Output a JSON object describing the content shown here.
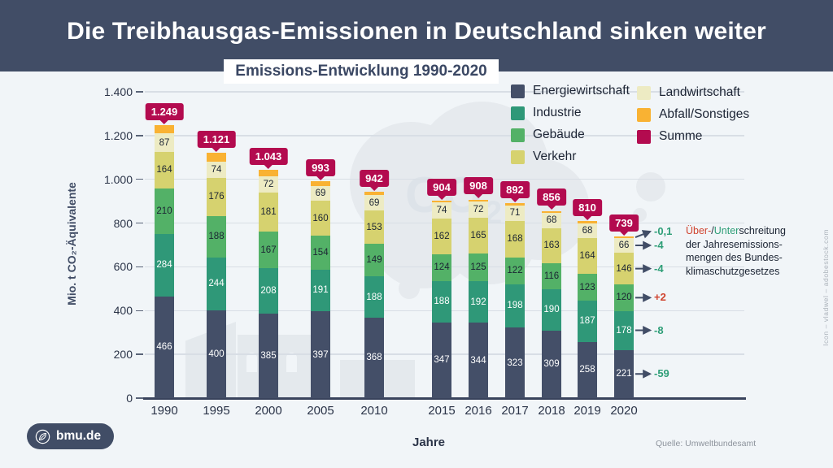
{
  "header": {
    "title": "Die Treibhausgas-Emissionen in Deutschland sinken weiter",
    "subtitle": "Emissions-Entwicklung 1990-2020"
  },
  "chart_data": {
    "type": "bar",
    "stacked": true,
    "title": "Emissions-Entwicklung 1990-2020",
    "xlabel": "Jahre",
    "ylabel": "Mio. t CO₂-Äquivalente",
    "ylim": [
      0,
      1400
    ],
    "grid": true,
    "legend_position": "top-right",
    "ytick_values": [
      0,
      200,
      400,
      600,
      800,
      1000,
      1200,
      1400
    ],
    "ytick_labels": [
      "0",
      "200",
      "400",
      "600",
      "800",
      "1.000",
      "1.200",
      "1.400"
    ],
    "categories": [
      "1990",
      "1995",
      "2000",
      "2005",
      "2010",
      "2015",
      "2016",
      "2017",
      "2018",
      "2019",
      "2020"
    ],
    "series": [
      {
        "name": "Energiewirtschaft",
        "color_key": "energiewirtschaft",
        "label_light": true,
        "values": [
          466,
          400,
          385,
          397,
          368,
          347,
          344,
          323,
          309,
          258,
          221
        ]
      },
      {
        "name": "Industrie",
        "color_key": "industrie",
        "label_light": true,
        "values": [
          284,
          244,
          208,
          191,
          188,
          188,
          192,
          198,
          190,
          187,
          178
        ]
      },
      {
        "name": "Gebäude",
        "color_key": "gebaeude",
        "label_light": false,
        "values": [
          210,
          188,
          167,
          154,
          149,
          124,
          125,
          122,
          116,
          123,
          120
        ]
      },
      {
        "name": "Verkehr",
        "color_key": "verkehr",
        "label_light": false,
        "values": [
          164,
          176,
          181,
          160,
          153,
          162,
          165,
          168,
          163,
          164,
          146
        ]
      },
      {
        "name": "Landwirtschaft",
        "color_key": "landwirtschaft",
        "label_light": false,
        "values": [
          87,
          74,
          72,
          69,
          69,
          74,
          72,
          71,
          68,
          68,
          66
        ]
      },
      {
        "name": "Abfall/Sonstiges",
        "color_key": "abfall",
        "label_light": false,
        "values": null
      }
    ],
    "totals_name": "Summe",
    "totals_values": [
      1249,
      1121,
      1043,
      993,
      942,
      904,
      908,
      892,
      856,
      810,
      739
    ],
    "totals_labels": [
      "1.249",
      "1.121",
      "1.043",
      "993",
      "942",
      "904",
      "908",
      "892",
      "856",
      "810",
      "739"
    ],
    "legend": {
      "columns": [
        [
          {
            "label": "Energiewirtschaft",
            "color_key": "energiewirtschaft"
          },
          {
            "label": "Industrie",
            "color_key": "industrie"
          },
          {
            "label": "Gebäude",
            "color_key": "gebaeude"
          },
          {
            "label": "Verkehr",
            "color_key": "verkehr"
          }
        ],
        [
          {
            "label": "Landwirtschaft",
            "color_key": "landwirtschaft"
          },
          {
            "label": "Abfall/Sonstiges",
            "color_key": "abfall"
          },
          {
            "label": "Summe",
            "color_key": "summe"
          }
        ]
      ]
    },
    "deltas": [
      {
        "value": "-0,1",
        "tone": "green"
      },
      {
        "value": "-4",
        "tone": "green"
      },
      {
        "value": "-4",
        "tone": "green"
      },
      {
        "value": "+2",
        "tone": "red"
      },
      {
        "value": "-8",
        "tone": "green"
      },
      {
        "value": "-59",
        "tone": "green"
      }
    ]
  },
  "annotation_note": {
    "seg_red": "Über-",
    "seg_slash": "/",
    "seg_green": "Unter",
    "seg_rest": "schreitung",
    "line2": "der Jahresemissions-",
    "line3": "mengen des Bundes-",
    "line4": "klimaschutzgesetzes"
  },
  "colors": {
    "header_bg": "#414D66",
    "page_bg": "#F1F5F8",
    "energiewirtschaft": "#444F68",
    "industrie": "#2F9878",
    "gebaeude": "#53B167",
    "verkehr": "#D6D26F",
    "landwirtschaft": "#EDEBC3",
    "abfall": "#F9B233",
    "summe": "#B30B4F",
    "delta_green": "#2E9E77",
    "delta_red": "#D0432E"
  },
  "footer": {
    "source": "Quelle: Umweltbundesamt",
    "brand": "bmu.de"
  },
  "watermarks": {
    "co2_main": "CO",
    "co2_sub": "2",
    "credit": "Icon – vladwel – adobestock.com"
  }
}
